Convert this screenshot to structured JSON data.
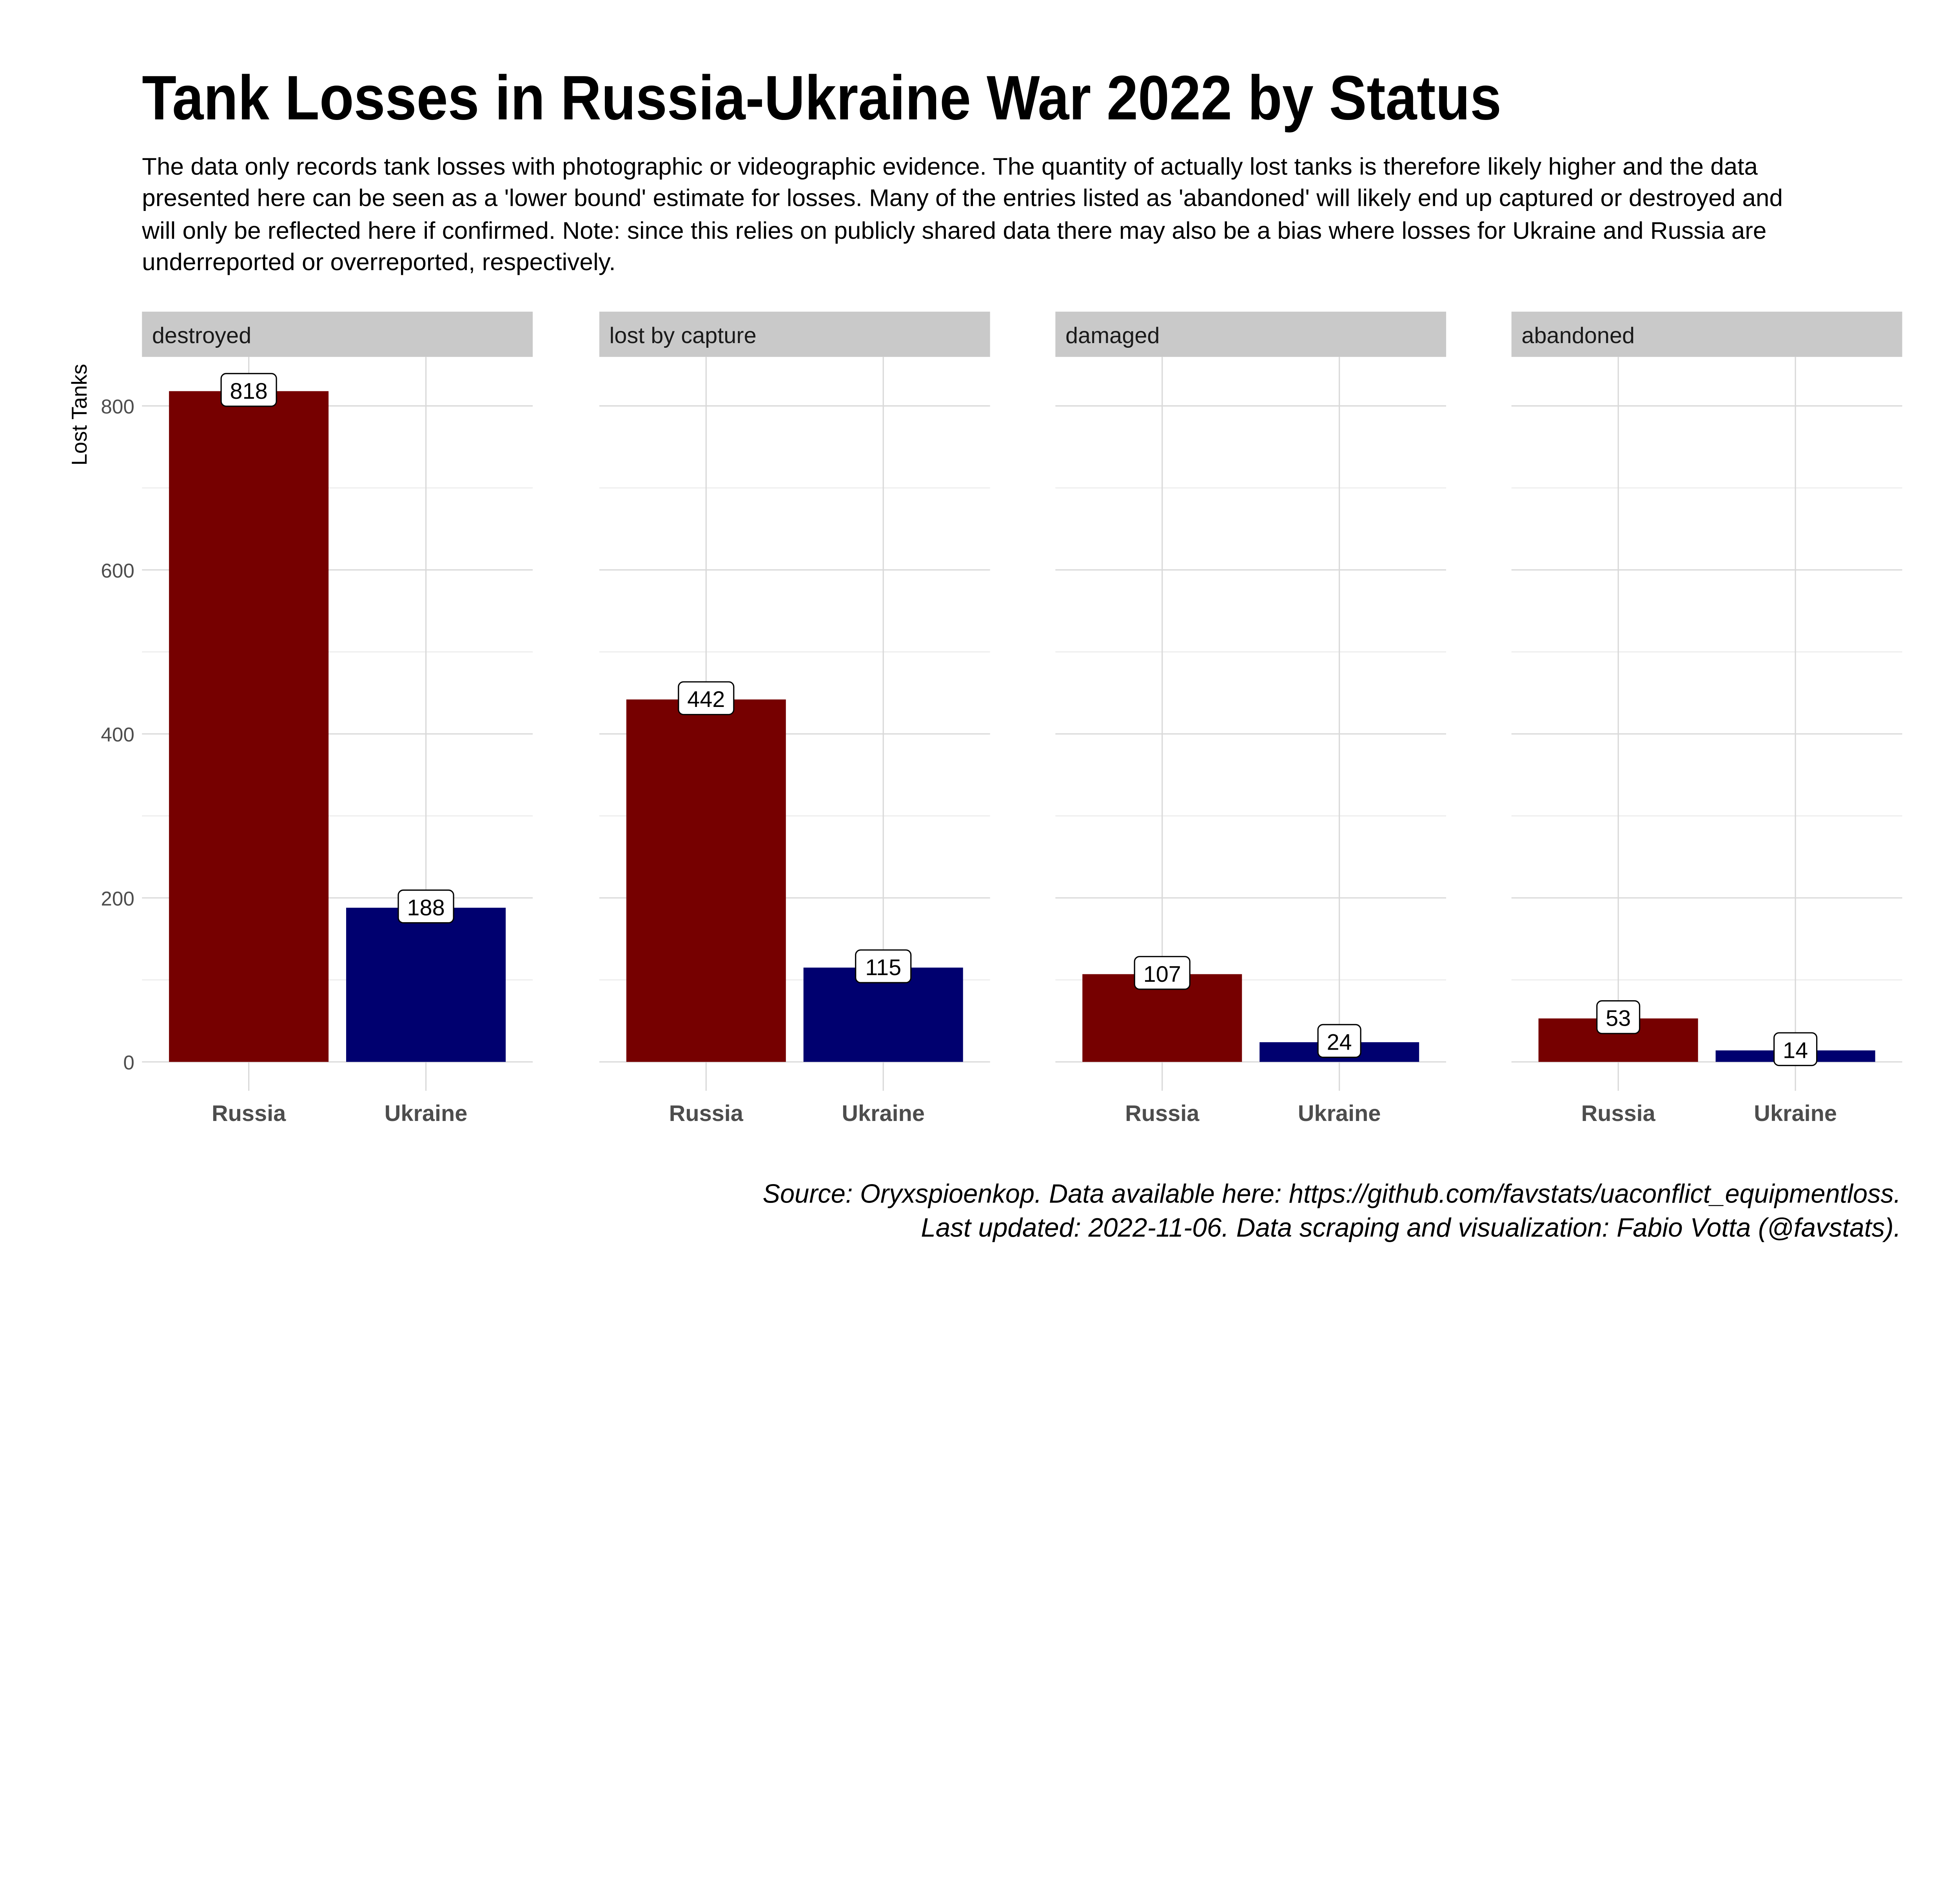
{
  "chart_data": {
    "type": "bar",
    "title": "Tank Losses in Russia-Ukraine War 2022 by Status",
    "subtitle_lines": [
      "The data only records tank losses with photographic or videographic evidence. The quantity of actually lost tanks is therefore likely higher and the data",
      "presented here can be seen as a 'lower bound' estimate for losses. Many of the entries listed as 'abandoned' will likely end up captured or destroyed and",
      "will only be reflected here if confirmed. Note: since this relies on publicly shared data there may also be a bias where losses for Ukraine and Russia are",
      "underreported or overreported, respectively."
    ],
    "caption_lines": [
      "Source: Oryxspioenkop. Data available here: https://github.com/favstats/uaconflict_equipmentloss.",
      "Last updated: 2022-11-06.  Data scraping and visualization: Fabio Votta (@favstats)."
    ],
    "ylabel": "Lost Tanks",
    "xlabel": "",
    "ylim": [
      0,
      860
    ],
    "yticks": [
      0,
      200,
      400,
      600,
      800
    ],
    "ytick_labels": [
      "0",
      "200",
      "400",
      "600",
      "800"
    ],
    "grid": true,
    "categories": [
      "Russia",
      "Ukraine"
    ],
    "colors": {
      "Russia": "#760000",
      "Ukraine": "#00006F"
    },
    "facets": [
      {
        "name": "destroyed",
        "values": [
          818,
          188
        ]
      },
      {
        "name": "lost by capture",
        "values": [
          442,
          115
        ]
      },
      {
        "name": "damaged",
        "values": [
          107,
          24
        ]
      },
      {
        "name": "abandoned",
        "values": [
          53,
          14
        ]
      }
    ]
  }
}
